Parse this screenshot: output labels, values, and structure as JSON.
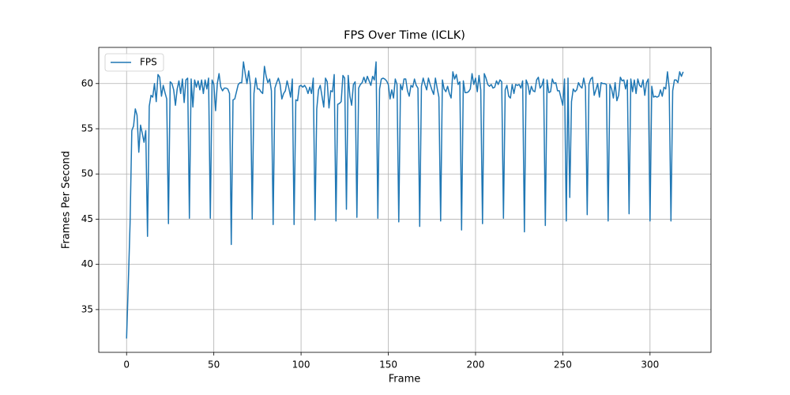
{
  "chart_data": {
    "type": "line",
    "title": "FPS Over Time (ICLK)",
    "x_label": "Frame",
    "y_label": "Frames Per Second",
    "xlim": [
      -15.95,
      334.95
    ],
    "ylim": [
      30.27,
      64.0
    ],
    "xticks": [
      0,
      50,
      100,
      150,
      200,
      250,
      300
    ],
    "yticks": [
      35,
      40,
      45,
      50,
      55,
      60
    ],
    "grid": true,
    "legend": "upper left",
    "x": [
      0,
      1,
      2,
      3,
      4,
      5,
      6,
      7,
      8,
      9,
      10,
      11,
      12,
      13,
      14,
      15,
      16,
      17,
      18,
      19,
      20,
      21,
      22,
      23,
      24,
      25,
      26,
      27,
      28,
      29,
      30,
      31,
      32,
      33,
      34,
      35,
      36,
      37,
      38,
      39,
      40,
      41,
      42,
      43,
      44,
      45,
      46,
      47,
      48,
      49,
      50,
      51,
      52,
      53,
      54,
      55,
      56,
      57,
      58,
      59,
      60,
      61,
      62,
      63,
      64,
      65,
      66,
      67,
      68,
      69,
      70,
      71,
      72,
      73,
      74,
      75,
      76,
      77,
      78,
      79,
      80,
      81,
      82,
      83,
      84,
      85,
      86,
      87,
      88,
      89,
      90,
      91,
      92,
      93,
      94,
      95,
      96,
      97,
      98,
      99,
      100,
      101,
      102,
      103,
      104,
      105,
      106,
      107,
      108,
      109,
      110,
      111,
      112,
      113,
      114,
      115,
      116,
      117,
      118,
      119,
      120,
      121,
      122,
      123,
      124,
      125,
      126,
      127,
      128,
      129,
      130,
      131,
      132,
      133,
      134,
      135,
      136,
      137,
      138,
      139,
      140,
      141,
      142,
      143,
      144,
      145,
      146,
      147,
      148,
      149,
      150,
      151,
      152,
      153,
      154,
      155,
      156,
      157,
      158,
      159,
      160,
      161,
      162,
      163,
      164,
      165,
      166,
      167,
      168,
      169,
      170,
      171,
      172,
      173,
      174,
      175,
      176,
      177,
      178,
      179,
      180,
      181,
      182,
      183,
      184,
      185,
      186,
      187,
      188,
      189,
      190,
      191,
      192,
      193,
      194,
      195,
      196,
      197,
      198,
      199,
      200,
      201,
      202,
      203,
      204,
      205,
      206,
      207,
      208,
      209,
      210,
      211,
      212,
      213,
      214,
      215,
      216,
      217,
      218,
      219,
      220,
      221,
      222,
      223,
      224,
      225,
      226,
      227,
      228,
      229,
      230,
      231,
      232,
      233,
      234,
      235,
      236,
      237,
      238,
      239,
      240,
      241,
      242,
      243,
      244,
      245,
      246,
      247,
      248,
      249,
      250,
      251,
      252,
      253,
      254,
      255,
      256,
      257,
      258,
      259,
      260,
      261,
      262,
      263,
      264,
      265,
      266,
      267,
      268,
      269,
      270,
      271,
      272,
      273,
      274,
      275,
      276,
      277,
      278,
      279,
      280,
      281,
      282,
      283,
      284,
      285,
      286,
      287,
      288,
      289,
      290,
      291,
      292,
      293,
      294,
      295,
      296,
      297,
      298,
      299,
      300,
      301,
      302,
      303,
      304,
      305,
      306,
      307,
      308,
      309,
      310,
      311,
      312,
      313,
      314,
      315,
      316,
      317,
      318,
      319
    ],
    "series": [
      {
        "name": "FPS",
        "color": "#1f77b4",
        "values": [
          31.8,
          38,
          44.5,
          54.8,
          55.3,
          57.2,
          56.5,
          52.4,
          55.4,
          54.5,
          53.5,
          54.8,
          43.1,
          57.5,
          58.7,
          58.5,
          60,
          58,
          61,
          60.7,
          58.6,
          59.8,
          59,
          58.3,
          44.5,
          60.2,
          60,
          59.3,
          57.6,
          59.4,
          60.3,
          58.9,
          60.5,
          57.9,
          60.4,
          60.6,
          45.1,
          60.5,
          57.4,
          60.4,
          59.6,
          60.3,
          59.3,
          60.4,
          58.9,
          60.4,
          59.4,
          60.6,
          45.1,
          60.4,
          59.9,
          57,
          60,
          61.1,
          59.6,
          59.2,
          59.5,
          59.5,
          59.4,
          58.9,
          42.2,
          58.2,
          58.3,
          59.1,
          59.9,
          60.1,
          60.1,
          62.4,
          61.1,
          60,
          61.4,
          59.8,
          45,
          58.9,
          60.6,
          59.4,
          59.4,
          59.1,
          58.9,
          61.9,
          60.8,
          60.1,
          60.5,
          59.2,
          44.4,
          59.5,
          60.1,
          60.6,
          59.9,
          58.3,
          58.9,
          59.2,
          60.3,
          59.5,
          58.5,
          60.5,
          44.4,
          58.2,
          58.1,
          59.7,
          59.8,
          59.6,
          59.8,
          59.5,
          58.9,
          59.6,
          58.9,
          60.6,
          44.9,
          57.2,
          59.3,
          59.8,
          58.6,
          57.4,
          60.6,
          60.2,
          57.3,
          59.2,
          59.1,
          61,
          44.8,
          57.7,
          57.8,
          58,
          60.9,
          60.6,
          46.1,
          60.9,
          58.6,
          57.6,
          59.9,
          60.2,
          45.2,
          59.5,
          59.9,
          60.1,
          60.7,
          60.1,
          60.8,
          60.3,
          59.8,
          60.8,
          60.4,
          62.4,
          45.1,
          59.4,
          60.5,
          60.6,
          60.5,
          60.3,
          59.9,
          58.3,
          59.3,
          58.4,
          60.5,
          59.9,
          44.7,
          59.9,
          59.3,
          60.5,
          60.5,
          59.2,
          58.6,
          59.8,
          59.6,
          60.5,
          59.8,
          59.5,
          44.2,
          59.7,
          60.6,
          59.9,
          59.3,
          60.6,
          59.9,
          59.3,
          58.8,
          60.6,
          59.5,
          58.5,
          44.8,
          60.4,
          59.4,
          59.1,
          59.7,
          58.9,
          58.4,
          61.3,
          60.5,
          61,
          59.9,
          60.2,
          43.8,
          60.3,
          59,
          59,
          59.1,
          59.4,
          61.1,
          59.9,
          60.6,
          59.1,
          60.9,
          59.3,
          44.5,
          61.1,
          60.6,
          59.9,
          59.7,
          59.9,
          59.5,
          59.6,
          60.3,
          59.9,
          60.4,
          60.2,
          45.1,
          59.3,
          59.8,
          58.6,
          58.4,
          59.9,
          58.9,
          59.9,
          59.8,
          59.9,
          59.5,
          60.3,
          43.6,
          60.4,
          59.9,
          58.8,
          59.7,
          59.2,
          59.1,
          60.4,
          60.7,
          59.5,
          59.8,
          60.5,
          44.3,
          60.4,
          59,
          59.1,
          60.5,
          60,
          60.1,
          59.2,
          59.2,
          58.4,
          57.6,
          60.5,
          44.8,
          60.6,
          47.4,
          58,
          59.4,
          59.1,
          59.3,
          60.1,
          59.7,
          59.5,
          60.6,
          59.6,
          45.5,
          59.9,
          60.5,
          60.7,
          58.7,
          59.3,
          60,
          58.5,
          60.1,
          60,
          60,
          59.9,
          44.8,
          59.9,
          59.4,
          58.4,
          60.1,
          58.1,
          58.7,
          60.7,
          60.3,
          60.4,
          59.4,
          60.4,
          45.6,
          60.5,
          59.1,
          60.4,
          58.9,
          60.5,
          59.8,
          59.6,
          60.4,
          58.7,
          60.1,
          60.5,
          44.8,
          59.7,
          58.5,
          58.6,
          58.5,
          58.6,
          59.3,
          58.6,
          59.6,
          59.4,
          61.3,
          59.5,
          44.8,
          59.2,
          60.4,
          60.4,
          60.1,
          61.3,
          60.8,
          61.3
        ]
      }
    ]
  }
}
